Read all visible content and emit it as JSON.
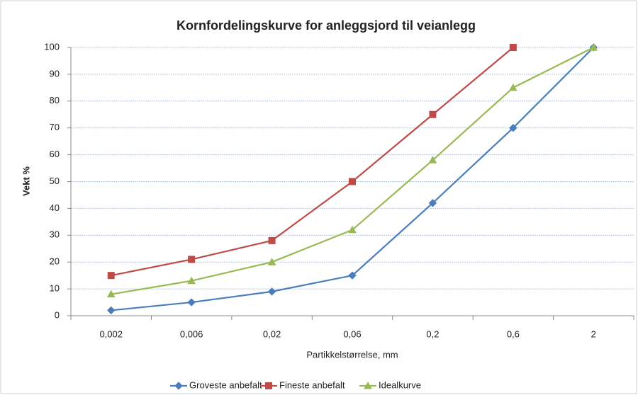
{
  "chart_data": {
    "type": "line",
    "title": "Kornfordelingskurve for anleggsjord til veianlegg",
    "x_label": "Partikkelstørrelse, mm",
    "y_label": "Vekt %",
    "categories": [
      "0,002",
      "0,006",
      "0,02",
      "0,06",
      "0,2",
      "0,6",
      "2"
    ],
    "series": [
      {
        "name": "Groveste anbefalt",
        "color": "#4a7ebb",
        "marker": "diamond",
        "values": [
          2,
          5,
          9,
          15,
          42,
          70,
          100
        ]
      },
      {
        "name": "Fineste anbefalt",
        "color": "#be4b48",
        "marker": "square",
        "values": [
          15,
          21,
          28,
          50,
          75,
          100,
          null
        ]
      },
      {
        "name": "Idealkurve",
        "color": "#98b954",
        "marker": "triangle",
        "values": [
          8,
          13,
          20,
          32,
          58,
          85,
          100
        ]
      }
    ],
    "ylim": [
      0,
      100
    ],
    "yticks": [
      0,
      10,
      20,
      30,
      40,
      50,
      60,
      70,
      80,
      90,
      100
    ],
    "grid": true,
    "legend": "bottom"
  }
}
